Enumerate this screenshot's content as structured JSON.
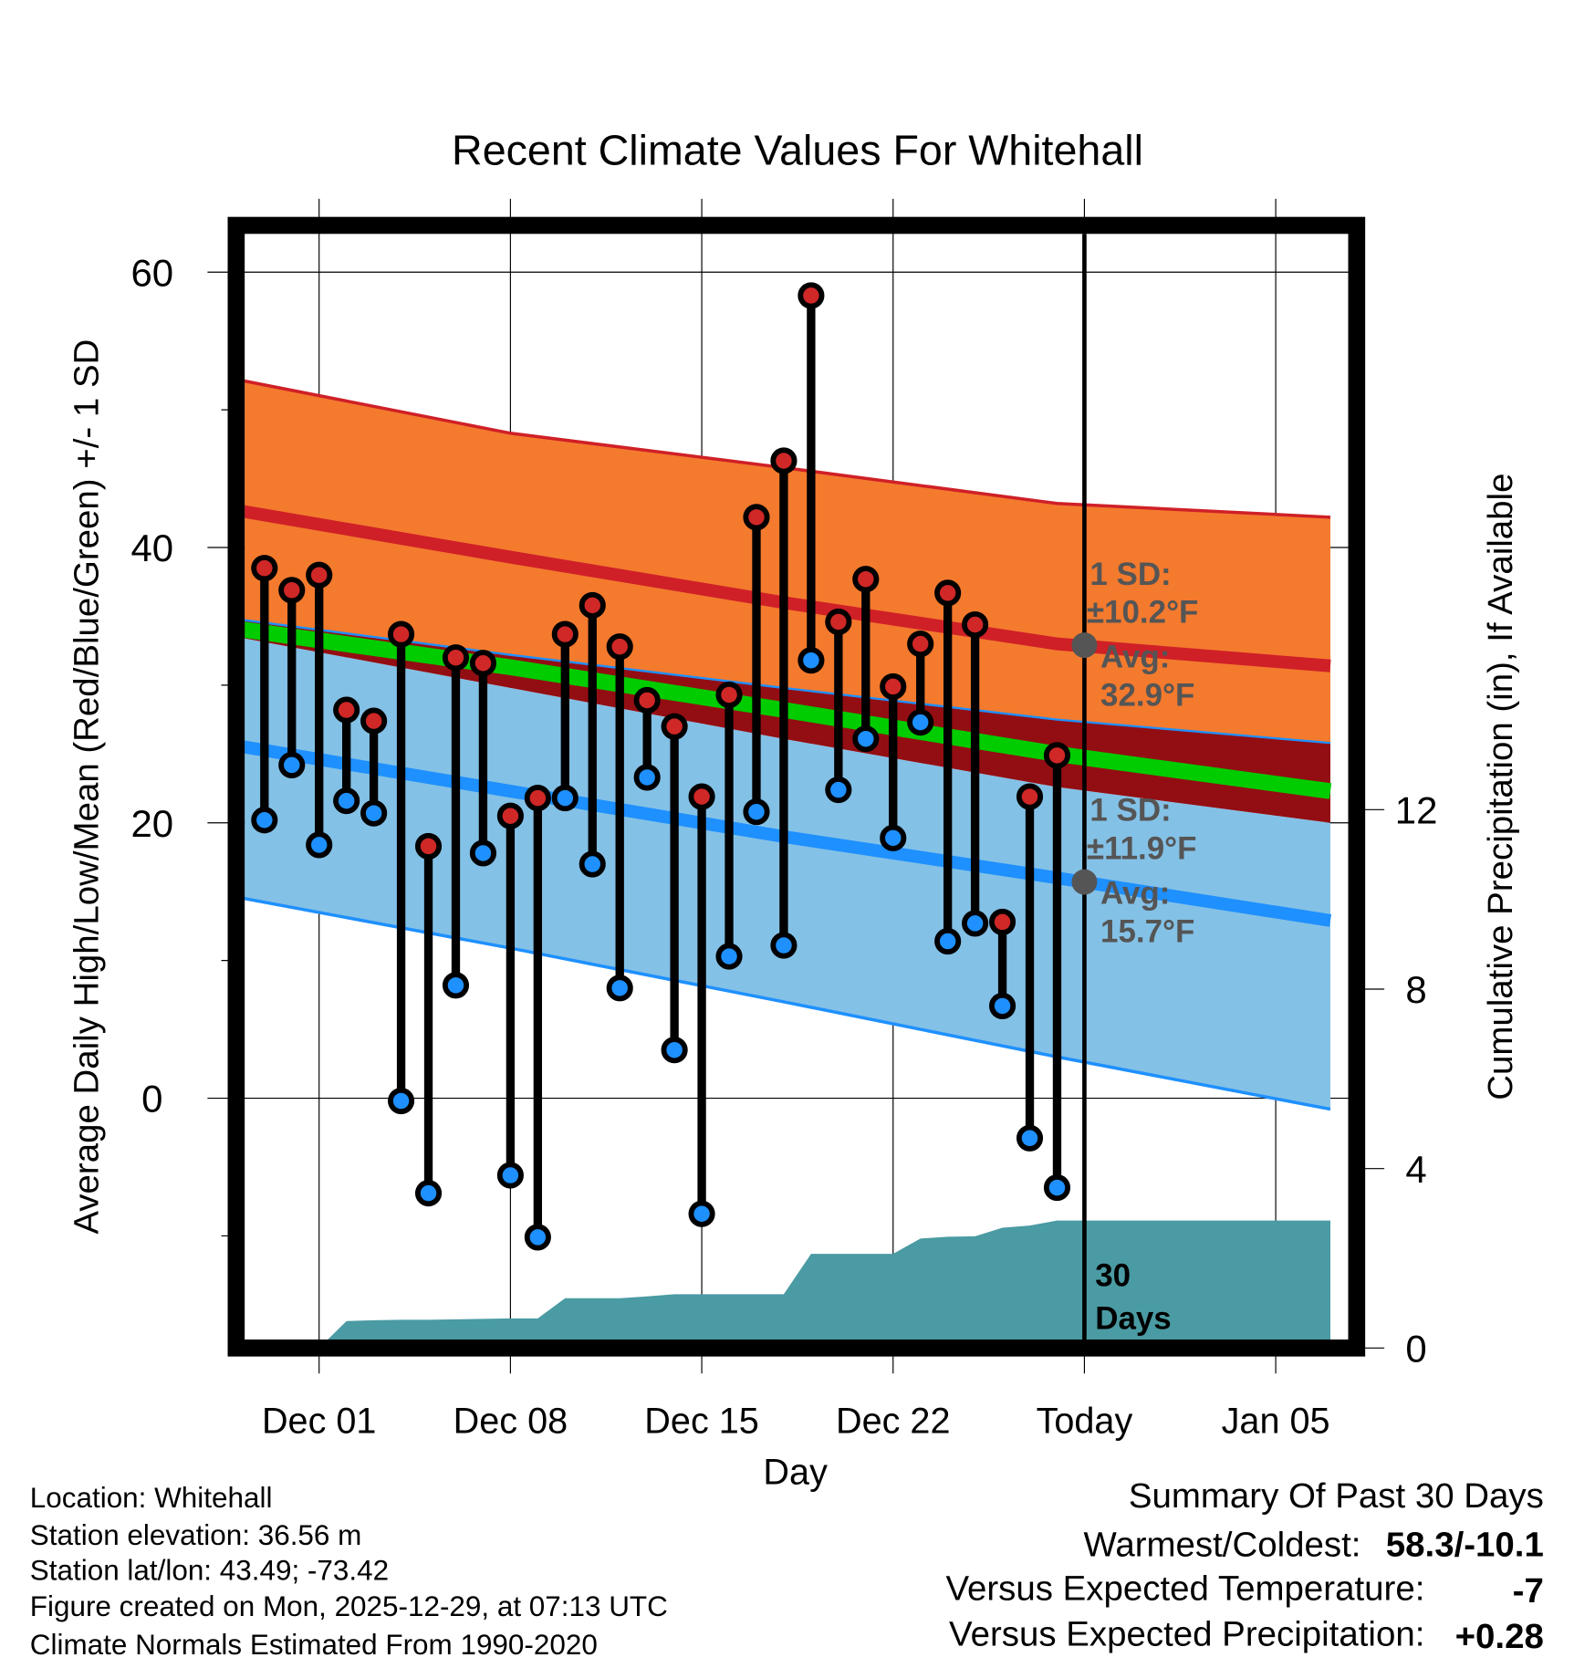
{
  "chart_data": {
    "type": "line",
    "title": "Recent Climate Values For Whitehall",
    "xlabel": "Day",
    "ylabel": "Average Daily High/Low/Mean (Red/Blue/Green) +/- 1 SD",
    "ylabel_right": "Cumulative Precipitation (in), If Available",
    "ylim": [
      -17.5,
      62.8
    ],
    "ylim_right": [
      0.2,
      24.8
    ],
    "xlim": [
      "2025-11-28",
      "2026-01-07"
    ],
    "y_ticks": [
      0,
      20,
      40,
      60
    ],
    "y_minor_ticks": [
      -10,
      10,
      30,
      50
    ],
    "y_right_ticks": [
      0,
      4,
      8,
      12
    ],
    "x_ticks": [
      {
        "date": "2025-12-01",
        "label": "Dec 01"
      },
      {
        "date": "2025-12-08",
        "label": "Dec 08"
      },
      {
        "date": "2025-12-15",
        "label": "Dec 15"
      },
      {
        "date": "2025-12-22",
        "label": "Dec 22"
      },
      {
        "date": "2025-12-29",
        "label": "Today"
      },
      {
        "date": "2026-01-05",
        "label": "Jan 05"
      }
    ],
    "grid": true,
    "today": "2025-12-29",
    "daily": {
      "dates": [
        "2025-11-29",
        "2025-11-30",
        "2025-12-01",
        "2025-12-02",
        "2025-12-03",
        "2025-12-04",
        "2025-12-05",
        "2025-12-06",
        "2025-12-07",
        "2025-12-08",
        "2025-12-09",
        "2025-12-10",
        "2025-12-11",
        "2025-12-12",
        "2025-12-13",
        "2025-12-14",
        "2025-12-15",
        "2025-12-16",
        "2025-12-17",
        "2025-12-18",
        "2025-12-19",
        "2025-12-20",
        "2025-12-21",
        "2025-12-22",
        "2025-12-23",
        "2025-12-24",
        "2025-12-25",
        "2025-12-26",
        "2025-12-27",
        "2025-12-28"
      ],
      "high": [
        38.5,
        36.9,
        38.0,
        28.2,
        27.4,
        33.7,
        18.3,
        32.0,
        31.6,
        20.5,
        21.8,
        33.7,
        35.8,
        32.8,
        28.9,
        27.0,
        21.9,
        29.3,
        42.2,
        46.3,
        58.3,
        34.6,
        37.7,
        29.9,
        33.0,
        36.7,
        34.4,
        12.8,
        21.9,
        24.9
      ],
      "low": [
        20.2,
        24.2,
        18.4,
        21.6,
        20.7,
        -0.2,
        -6.9,
        8.2,
        17.8,
        -5.6,
        -10.1,
        21.8,
        17.0,
        8.0,
        23.3,
        3.5,
        -8.4,
        10.3,
        20.8,
        11.1,
        31.8,
        22.4,
        26.1,
        18.9,
        27.3,
        11.4,
        12.7,
        6.7,
        -2.9,
        -6.5
      ]
    },
    "precip_cumulative": {
      "dates": [
        "2025-11-28",
        "2025-12-01",
        "2025-12-02",
        "2025-12-03",
        "2025-12-04",
        "2025-12-05",
        "2025-12-06",
        "2025-12-07",
        "2025-12-08",
        "2025-12-09",
        "2025-12-10",
        "2025-12-11",
        "2025-12-12",
        "2025-12-13",
        "2025-12-14",
        "2025-12-15",
        "2025-12-16",
        "2025-12-17",
        "2025-12-18",
        "2025-12-19",
        "2025-12-20",
        "2025-12-21",
        "2025-12-22",
        "2025-12-23",
        "2025-12-24",
        "2025-12-25",
        "2025-12-26",
        "2025-12-27",
        "2025-12-28",
        "2026-01-07"
      ],
      "values": [
        0,
        0,
        0.6,
        0.62,
        0.63,
        0.63,
        0.64,
        0.65,
        0.66,
        0.66,
        1.11,
        1.11,
        1.11,
        1.15,
        1.2,
        1.2,
        1.2,
        1.2,
        1.2,
        2.1,
        2.1,
        2.1,
        2.1,
        2.44,
        2.48,
        2.49,
        2.68,
        2.73,
        2.84,
        2.84
      ]
    },
    "normals": {
      "dates": [
        "2025-11-28",
        "2025-12-08",
        "2025-12-18",
        "2025-12-28",
        "2026-01-07"
      ],
      "high_sd_upper": [
        52.2,
        48.3,
        45.8,
        43.2,
        42.2
      ],
      "high_mean": [
        42.7,
        39.3,
        36.0,
        33.0,
        31.4
      ],
      "high_sd_lower": [
        34.8,
        32.2,
        29.8,
        27.5,
        25.8
      ],
      "mean": [
        34.1,
        31.3,
        28.2,
        25.0,
        22.3
      ],
      "low_sd_upper": [
        33.5,
        29.8,
        26.1,
        22.6,
        20.0
      ],
      "low_mean": [
        25.6,
        22.3,
        19.0,
        16.0,
        12.9
      ],
      "low_sd_lower": [
        14.6,
        10.9,
        7.0,
        3.0,
        -0.8
      ]
    },
    "annotations": {
      "high": {
        "sd_label": "1 SD:",
        "sd_value": "±10.2°F",
        "avg_label": "Avg:",
        "avg_value": "32.9°F",
        "avg": 32.9
      },
      "low": {
        "sd_label": "1 SD:",
        "sd_value": "±11.9°F",
        "avg_label": "Avg:",
        "avg_value": "15.7°F",
        "avg": 15.7
      },
      "window": {
        "line1": "30",
        "line2": "Days"
      }
    },
    "colors": {
      "high_band": "#F47A2E",
      "high_line": "#CF2027",
      "overlap": "#930E13",
      "mean": "#00CC00",
      "low_band": "#84C1E6",
      "low_line": "#1E90FF",
      "precip": "#4A9BA3",
      "high_marker": "#D02727",
      "low_marker": "#1E90FF",
      "annotation": "#555555"
    }
  },
  "footer": {
    "location": "Location: Whitehall",
    "elevation": "Station elevation: 36.56 m",
    "latlon": "Station lat/lon: 43.49; -73.42",
    "created": "Figure created on Mon, 2025-12-29, at 07:13 UTC",
    "normals": "Climate Normals Estimated From 1990-2020"
  },
  "summary": {
    "title": "Summary Of Past 30 Days",
    "warmest_coldest_label": "Warmest/Coldest:",
    "warmest_coldest_value": "58.3/-10.1",
    "temp_label": "Versus Expected Temperature:",
    "temp_value": "-7",
    "temp_color": "#1E90FF",
    "precip_label": "Versus Expected Precipitation:",
    "precip_value": "+0.28",
    "precip_color": "#00CC00"
  }
}
